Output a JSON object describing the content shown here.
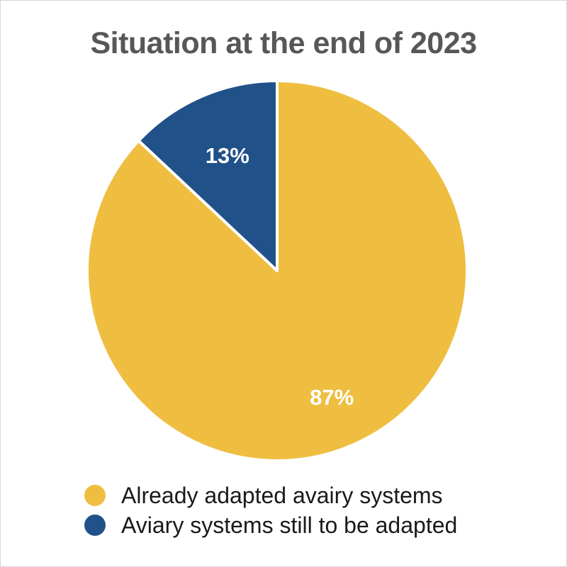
{
  "chart_data": {
    "type": "pie",
    "title": "Situation at the end of 2023",
    "start_angle_deg": 0,
    "direction": "clockwise",
    "slices": [
      {
        "label": "Already adapted avairy systems",
        "value": 87,
        "value_label": "87%",
        "color": "#EFBE41"
      },
      {
        "label": "Aviary systems still to be adapted",
        "value": 13,
        "value_label": "13%",
        "color": "#215189"
      }
    ],
    "legend_position": "bottom"
  }
}
